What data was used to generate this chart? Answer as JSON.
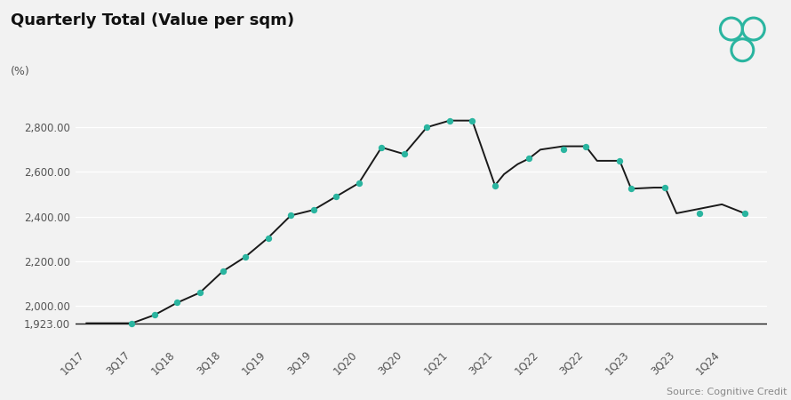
{
  "title": "Quarterly Total (Value per sqm)",
  "subtitle": "(%)",
  "source": "Source: Cognitive Credit",
  "x_labels": [
    "1Q17",
    "3Q17",
    "1Q18",
    "3Q18",
    "1Q19",
    "3Q19",
    "1Q20",
    "3Q20",
    "1Q21",
    "3Q21",
    "1Q22",
    "3Q22",
    "1Q23",
    "3Q23",
    "1Q24"
  ],
  "series_x": [
    0,
    1,
    2,
    3,
    4,
    5,
    6,
    7,
    8,
    9,
    10,
    11,
    12,
    13,
    14,
    15,
    16,
    17,
    18,
    18.4,
    19,
    19.5,
    20,
    21,
    22,
    22.5,
    23,
    23.5,
    24,
    25,
    25.5,
    26,
    27,
    28,
    29
  ],
  "series_y": [
    1923,
    1923,
    1923,
    1960,
    2015,
    2060,
    2155,
    2220,
    2305,
    2405,
    2430,
    2490,
    2550,
    2710,
    2680,
    2800,
    2830,
    2830,
    2540,
    2590,
    2635,
    2660,
    2700,
    2715,
    2715,
    2650,
    2650,
    2650,
    2525,
    2530,
    2530,
    2415,
    2435,
    2455,
    2415
  ],
  "marker_x": [
    2,
    3,
    4,
    5,
    6,
    7,
    8,
    9,
    10,
    11,
    12,
    13,
    14,
    15,
    16,
    17,
    18,
    19.5,
    21,
    22,
    23.5,
    24,
    25.5,
    27,
    29
  ],
  "marker_y": [
    1923,
    1960,
    2015,
    2060,
    2155,
    2220,
    2305,
    2405,
    2430,
    2490,
    2550,
    2710,
    2680,
    2800,
    2830,
    2830,
    2540,
    2660,
    2700,
    2715,
    2650,
    2525,
    2530,
    2415,
    2415
  ],
  "hline_y": 1923,
  "yticks": [
    1923,
    2000,
    2200,
    2400,
    2600,
    2800
  ],
  "ytick_labels": [
    "1,923.00",
    "2,000.00",
    "2,200.00",
    "2,400.00",
    "2,600.00",
    "2,800.00"
  ],
  "ylim": [
    1830,
    2940
  ],
  "xlim": [
    -0.5,
    30
  ],
  "xtick_pos": [
    0,
    2,
    4,
    6,
    8,
    10,
    12,
    14,
    16,
    18,
    20,
    22,
    24,
    26,
    28
  ],
  "line_color": "#1a1a1a",
  "marker_color": "#2ab5a0",
  "hline_color": "#1a1a1a",
  "bg_color": "#f2f2f2",
  "grid_color": "#ffffff",
  "title_fontsize": 13,
  "subtitle_fontsize": 9,
  "tick_fontsize": 8.5,
  "source_fontsize": 8,
  "logo_color": "#2ab5a0"
}
